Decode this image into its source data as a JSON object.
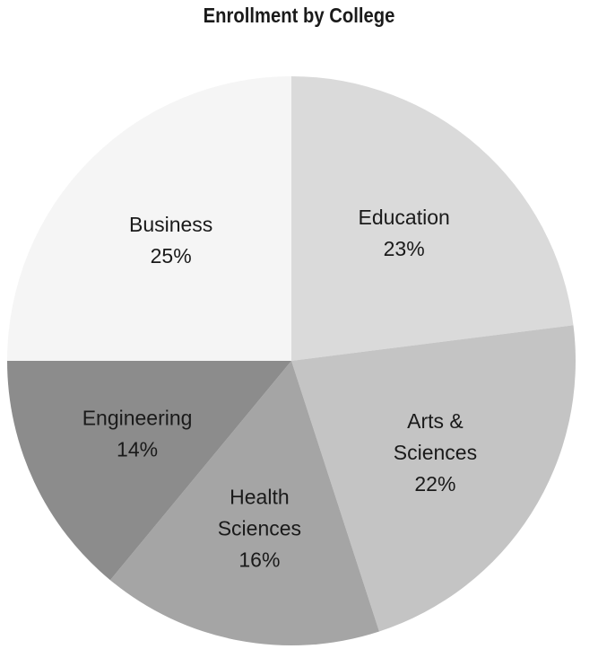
{
  "chart_data": {
    "type": "pie",
    "title": "Enrollment by College",
    "slices": [
      {
        "name": "Education",
        "label_lines": [
          "Education"
        ],
        "value": 23,
        "pct_label": "23%",
        "color": "#dadada"
      },
      {
        "name": "Arts & Sciences",
        "label_lines": [
          "Arts &",
          "Sciences"
        ],
        "value": 22,
        "pct_label": "22%",
        "color": "#c4c4c4"
      },
      {
        "name": "Health Sciences",
        "label_lines": [
          "Health",
          "Sciences"
        ],
        "value": 16,
        "pct_label": "16%",
        "color": "#a5a5a5"
      },
      {
        "name": "Engineering",
        "label_lines": [
          "Engineering"
        ],
        "value": 14,
        "pct_label": "14%",
        "color": "#8c8c8c"
      },
      {
        "name": "Business",
        "label_lines": [
          "Business"
        ],
        "value": 25,
        "pct_label": "25%",
        "color": "#f5f5f5"
      }
    ],
    "start": "12 o'clock",
    "direction": "clockwise",
    "legend": "none"
  }
}
